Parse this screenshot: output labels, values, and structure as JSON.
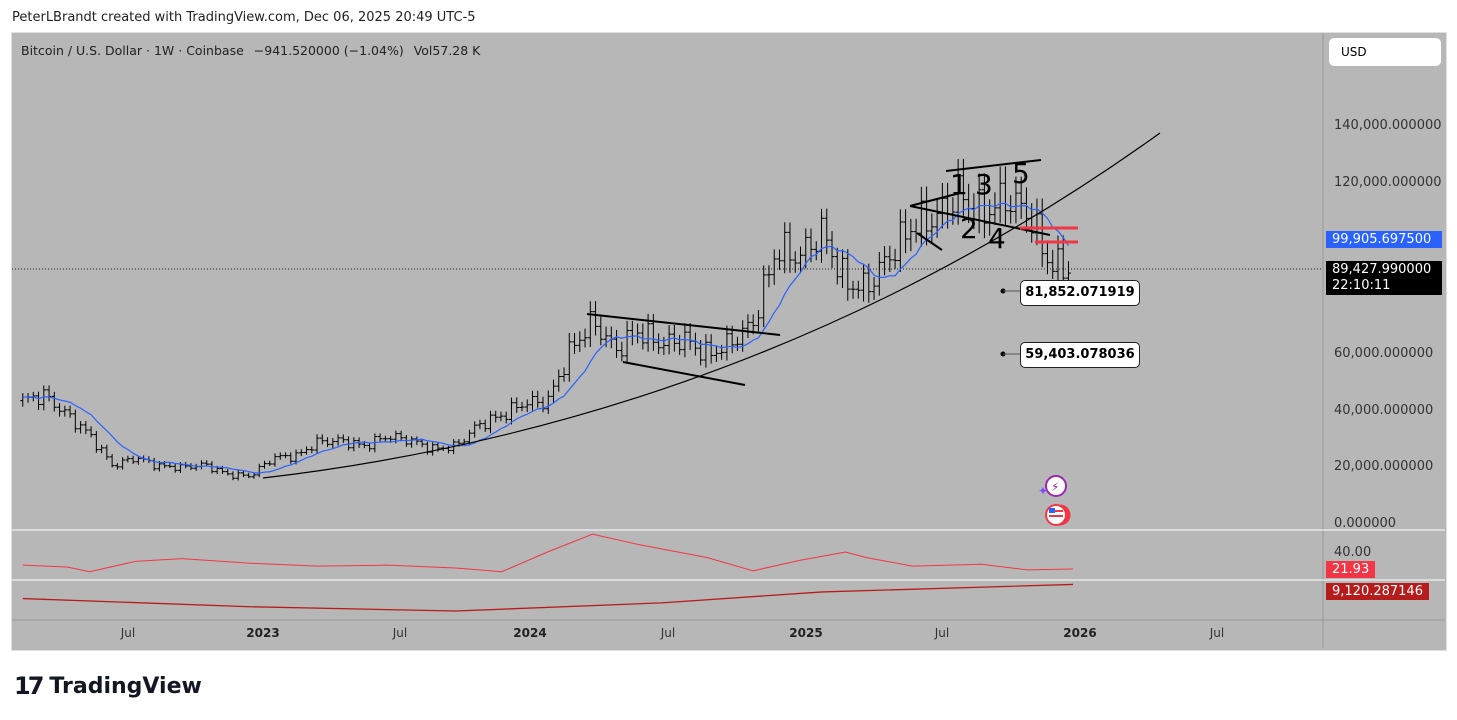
{
  "credit": "PeterLBrandt created with TradingView.com, Dec 06, 2025 20:49 UTC-5",
  "legend": {
    "symbol": "Bitcoin / U.S. Dollar · 1W · Coinbase",
    "change": "−941.520000 (−1.04%)",
    "volume": "Vol57.28 K"
  },
  "currency_button": "USD",
  "brand": "TradingView",
  "chart_data": {
    "type": "ohlc-bar",
    "x_axis_labels": [
      "Jul",
      "2023",
      "Jul",
      "2024",
      "Jul",
      "2025",
      "Jul",
      "2026",
      "Jul"
    ],
    "y_axis_labels": [
      "140,000.000000",
      "120,000.000000",
      "60,000.000000",
      "40,000.000000",
      "20,000.000000",
      "0.000000"
    ],
    "ylim": [
      0,
      170000
    ],
    "monthly_closes": [
      [
        "2022-02",
        43000
      ],
      [
        "2022-03",
        45000
      ],
      [
        "2022-04",
        38000
      ],
      [
        "2022-05",
        31000
      ],
      [
        "2022-06",
        20000
      ],
      [
        "2022-07",
        23000
      ],
      [
        "2022-08",
        20000
      ],
      [
        "2022-09",
        19500
      ],
      [
        "2022-10",
        20500
      ],
      [
        "2022-11",
        17000
      ],
      [
        "2022-12",
        16500
      ],
      [
        "2023-01",
        23000
      ],
      [
        "2023-02",
        23500
      ],
      [
        "2023-03",
        28500
      ],
      [
        "2023-04",
        29000
      ],
      [
        "2023-05",
        27000
      ],
      [
        "2023-06",
        30500
      ],
      [
        "2023-07",
        29200
      ],
      [
        "2023-08",
        26000
      ],
      [
        "2023-09",
        27000
      ],
      [
        "2023-10",
        34500
      ],
      [
        "2023-11",
        37700
      ],
      [
        "2023-12",
        42300
      ],
      [
        "2024-01",
        42500
      ],
      [
        "2024-02",
        61000
      ],
      [
        "2024-03",
        71000
      ],
      [
        "2024-04",
        60600
      ],
      [
        "2024-05",
        67500
      ],
      [
        "2024-06",
        62700
      ],
      [
        "2024-07",
        64600
      ],
      [
        "2024-08",
        59000
      ],
      [
        "2024-09",
        63300
      ],
      [
        "2024-10",
        70200
      ],
      [
        "2024-11",
        96400
      ],
      [
        "2024-12",
        93400
      ],
      [
        "2025-01",
        102400
      ],
      [
        "2025-02",
        84300
      ],
      [
        "2025-03",
        82500
      ],
      [
        "2025-04",
        94200
      ],
      [
        "2025-05",
        104600
      ],
      [
        "2025-06",
        107100
      ],
      [
        "2025-07",
        115700
      ],
      [
        "2025-08",
        108200
      ],
      [
        "2025-09",
        114000
      ],
      [
        "2025-10",
        109500
      ],
      [
        "2025-11",
        90400
      ],
      [
        "2025-12",
        89428
      ]
    ],
    "last_price": "89,427.990000",
    "countdown": "22:10:11",
    "ma_value": "99,905.697500",
    "price_labels": [
      "81,852.071919",
      "59,403.078036"
    ],
    "wave_labels": [
      "1",
      "3",
      "5",
      "2",
      "4"
    ],
    "colors": {
      "bars": "#000000",
      "ma": "#2962ff",
      "curve": "#000000",
      "levels": "#f23645",
      "background": "#b7b7b7"
    },
    "indicator1": {
      "axis_label": "40.00",
      "value": "21.93",
      "color": "#f23645",
      "points": [
        [
          "2022-02",
          26
        ],
        [
          "2022-04",
          24
        ],
        [
          "2022-05",
          19
        ],
        [
          "2022-07",
          30
        ],
        [
          "2022-09",
          33
        ],
        [
          "2022-12",
          28
        ],
        [
          "2023-03",
          25
        ],
        [
          "2023-06",
          26
        ],
        [
          "2023-09",
          23
        ],
        [
          "2023-11",
          19
        ],
        [
          "2024-01",
          40
        ],
        [
          "2024-03",
          59
        ],
        [
          "2024-05",
          48
        ],
        [
          "2024-08",
          34
        ],
        [
          "2024-10",
          20
        ],
        [
          "2024-12",
          31
        ],
        [
          "2025-02",
          40
        ],
        [
          "2025-03",
          34
        ],
        [
          "2025-05",
          25
        ],
        [
          "2025-08",
          27
        ],
        [
          "2025-10",
          21
        ],
        [
          "2025-12",
          21.93
        ]
      ]
    },
    "indicator2": {
      "value": "9,120.287146",
      "color": "#b71c1c",
      "points": [
        [
          "2022-02",
          5500
        ],
        [
          "2022-12",
          3400
        ],
        [
          "2023-09",
          2300
        ],
        [
          "2024-06",
          4400
        ],
        [
          "2025-01",
          7200
        ],
        [
          "2025-12",
          9120.287146
        ]
      ]
    }
  }
}
